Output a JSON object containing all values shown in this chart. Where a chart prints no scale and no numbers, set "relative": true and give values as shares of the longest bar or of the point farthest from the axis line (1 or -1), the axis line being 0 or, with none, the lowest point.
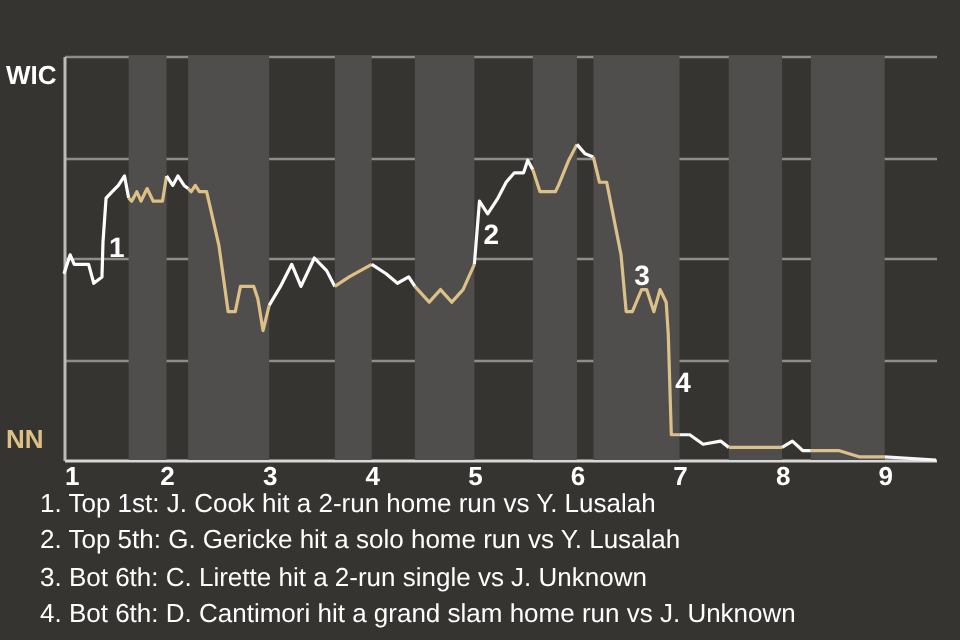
{
  "chart_data": {
    "type": "line",
    "relative": true,
    "series": [
      {
        "color": "#ffffff",
        "x": [
          1.0,
          1.06,
          1.1,
          1.24,
          1.29,
          1.37,
          1.38,
          1.41,
          1.47,
          1.53,
          1.59,
          1.63
        ],
        "values": [
          0.59,
          0.65,
          0.62,
          0.62,
          0.56,
          0.58,
          0.69,
          0.83,
          0.85,
          0.87,
          0.9,
          0.83
        ]
      },
      {
        "color": "#dcc084",
        "x": [
          1.63,
          1.66,
          1.71,
          1.75,
          1.81,
          1.87,
          1.96,
          2.0
        ],
        "values": [
          0.83,
          0.82,
          0.85,
          0.82,
          0.86,
          0.82,
          0.82,
          0.9
        ]
      },
      {
        "color": "#fefefe",
        "x": [
          2.0,
          2.06,
          2.11,
          2.17,
          2.21
        ],
        "values": [
          0.9,
          0.87,
          0.9,
          0.87,
          0.86
        ]
      },
      {
        "color": "#dcc085",
        "x": [
          2.21,
          2.24,
          2.28,
          2.32,
          2.39,
          2.44,
          2.51,
          2.6,
          2.67,
          2.72,
          2.85,
          2.89,
          2.94,
          3.0
        ],
        "values": [
          0.86,
          0.85,
          0.87,
          0.85,
          0.85,
          0.78,
          0.68,
          0.47,
          0.47,
          0.55,
          0.55,
          0.51,
          0.41,
          0.49
        ]
      },
      {
        "color": "#fdfdfd",
        "x": [
          3.0,
          3.11,
          3.22,
          3.31,
          3.44,
          3.56,
          3.64
        ],
        "values": [
          0.49,
          0.55,
          0.62,
          0.55,
          0.64,
          0.6,
          0.55
        ]
      },
      {
        "color": "#dcc086",
        "x": [
          3.64,
          3.78,
          4.0
        ],
        "values": [
          0.55,
          0.58,
          0.62
        ]
      },
      {
        "color": "#fcfcfc",
        "x": [
          4.0,
          4.14,
          4.25,
          4.36,
          4.42
        ],
        "values": [
          0.62,
          0.59,
          0.56,
          0.58,
          0.55
        ]
      },
      {
        "color": "#dcc087",
        "x": [
          4.42,
          4.56,
          4.67,
          4.78,
          4.89,
          5.0
        ],
        "values": [
          0.55,
          0.5,
          0.54,
          0.5,
          0.54,
          0.62
        ]
      },
      {
        "color": "#fbfbfb",
        "x": [
          5.0,
          5.05,
          5.13,
          5.23,
          5.31,
          5.39,
          5.48,
          5.52,
          5.57
        ],
        "values": [
          0.62,
          0.82,
          0.78,
          0.83,
          0.88,
          0.91,
          0.91,
          0.95,
          0.92
        ]
      },
      {
        "color": "#dcc088",
        "x": [
          5.57,
          5.64,
          5.79,
          5.82,
          5.92,
          6.0
        ],
        "values": [
          0.92,
          0.85,
          0.85,
          0.87,
          0.95,
          1
        ]
      },
      {
        "color": "#fafafa",
        "x": [
          6.0,
          6.08,
          6.16
        ],
        "values": [
          1,
          0.97,
          0.96
        ]
      },
      {
        "color": "#dcc089",
        "x": [
          6.16,
          6.22,
          6.29,
          6.43,
          6.48,
          6.54,
          6.63,
          6.68,
          6.75,
          6.81,
          6.87,
          6.89,
          6.92,
          7.0
        ],
        "values": [
          0.96,
          0.88,
          0.88,
          0.65,
          0.47,
          0.47,
          0.54,
          0.54,
          0.47,
          0.54,
          0.5,
          0.4,
          0.08,
          0.08
        ]
      },
      {
        "color": "#f9f9f9",
        "x": [
          7.0,
          7.1,
          7.23,
          7.4,
          7.48
        ],
        "values": [
          0.08,
          0.08,
          0.05,
          0.06,
          0.04
        ]
      },
      {
        "color": "#dcc08a",
        "x": [
          7.48,
          7.63,
          7.88,
          8.0
        ],
        "values": [
          0.04,
          0.04,
          0.04,
          0.04
        ]
      },
      {
        "color": "#f8f8f8",
        "x": [
          8.0,
          8.1,
          8.2,
          8.28
        ],
        "values": [
          0.04,
          0.06,
          0.03,
          0.03
        ]
      },
      {
        "color": "#dcc08b",
        "x": [
          8.28,
          8.55,
          8.75,
          9.0
        ],
        "values": [
          0.03,
          0.03,
          0.01,
          0.01
        ]
      },
      {
        "color": "#f7f7f7",
        "x": [
          9.0,
          9.5
        ],
        "values": [
          0.01,
          0
        ]
      }
    ],
    "xlim": [
      1,
      9.5
    ],
    "xticks": [
      1,
      2,
      3,
      4,
      5,
      6,
      7,
      8,
      9
    ],
    "grid": "y",
    "bands": [
      {
        "axis": "x",
        "from": 1.63,
        "to": 2,
        "color": "#4f4e4c"
      },
      {
        "axis": "x",
        "from": 2.21,
        "to": 3,
        "color": "#4f4e4c"
      },
      {
        "axis": "x",
        "from": 3.64,
        "to": 4,
        "color": "#4f4e4c"
      },
      {
        "axis": "x",
        "from": 4.42,
        "to": 5,
        "color": "#4f4e4c"
      },
      {
        "axis": "x",
        "from": 5.57,
        "to": 6,
        "color": "#4f4e4c"
      },
      {
        "axis": "x",
        "from": 6.16,
        "to": 7,
        "color": "#4f4e4c"
      },
      {
        "axis": "x",
        "from": 7.48,
        "to": 8,
        "color": "#4f4e4c"
      },
      {
        "axis": "x",
        "from": 8.28,
        "to": 9,
        "color": "#4f4e4c"
      }
    ],
    "annotations": [
      "WIC",
      "NN",
      {
        "text": "1",
        "x": 1.38,
        "y": 0.67
      },
      {
        "text": "2",
        "x": 5.03,
        "y": 0.71
      },
      {
        "text": "3",
        "x": 6.5,
        "y": 0.58
      },
      {
        "text": "4",
        "x": 6.9,
        "y": 0.24
      },
      "1. Top 1st: J. Cook hit a 2-run home run vs Y. Lusalah",
      "2. Top 5th: G. Gericke hit a solo home run vs Y. Lusalah",
      "3. Bot 6th: C. Lirette hit a 2-run single vs J. Unknown",
      "4. Bot 6th: D. Cantimori hit a grand slam home run vs J. Unknown"
    ]
  }
}
